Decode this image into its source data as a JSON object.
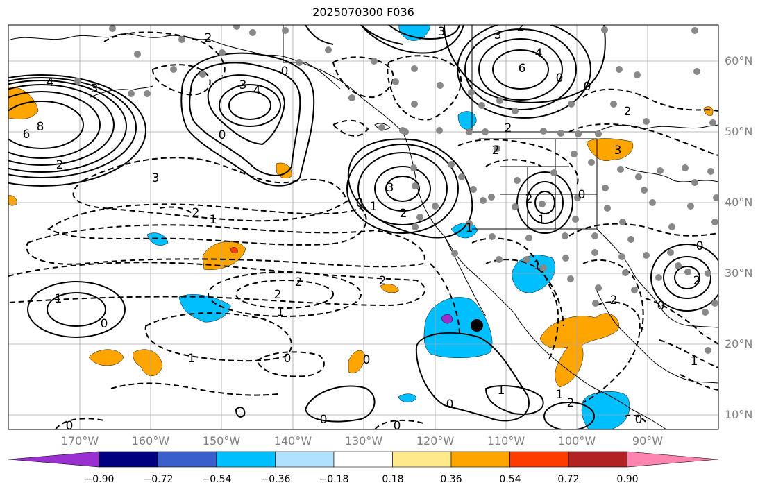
{
  "title": "2025070300 F036",
  "lon_labels": [
    "170°W",
    "160°W",
    "150°W",
    "140°W",
    "130°W",
    "120°W",
    "110°W",
    "100°W",
    "90°W"
  ],
  "lat_labels": [
    "60°N",
    "50°N",
    "40°N",
    "30°N",
    "20°N",
    "10°N"
  ],
  "colorbar": {
    "ticks": [
      "−0.90",
      "−0.72",
      "−0.54",
      "−0.36",
      "−0.18",
      "0.18",
      "0.36",
      "0.54",
      "0.72",
      "0.90"
    ],
    "colors": [
      "#9b30d0",
      "#000080",
      "#3a5fcd",
      "#00bfff",
      "#b0e2ff",
      "#ffffff",
      "#ffe98a",
      "#ffa500",
      "#ff3c00",
      "#b22222",
      "#ff85b0"
    ]
  },
  "contour_labels": {
    "positive": [
      "8",
      "6",
      "4",
      "3",
      "2",
      "4",
      "3",
      "3",
      "4",
      "6",
      "3",
      "2",
      "3",
      "2",
      "1",
      "2",
      "1",
      "1",
      "1",
      "1",
      "2",
      "2",
      "3"
    ],
    "zero": [
      "0",
      "0",
      "0",
      "0",
      "0",
      "0",
      "0",
      "0",
      "0",
      "0",
      "0",
      "0",
      "0",
      "0",
      "0",
      "0"
    ],
    "negative": [
      "2",
      "1",
      "2",
      "2",
      "1",
      "2",
      "1",
      "2",
      "3",
      "2",
      "1",
      "1",
      "2",
      "1",
      "2",
      "2"
    ]
  }
}
